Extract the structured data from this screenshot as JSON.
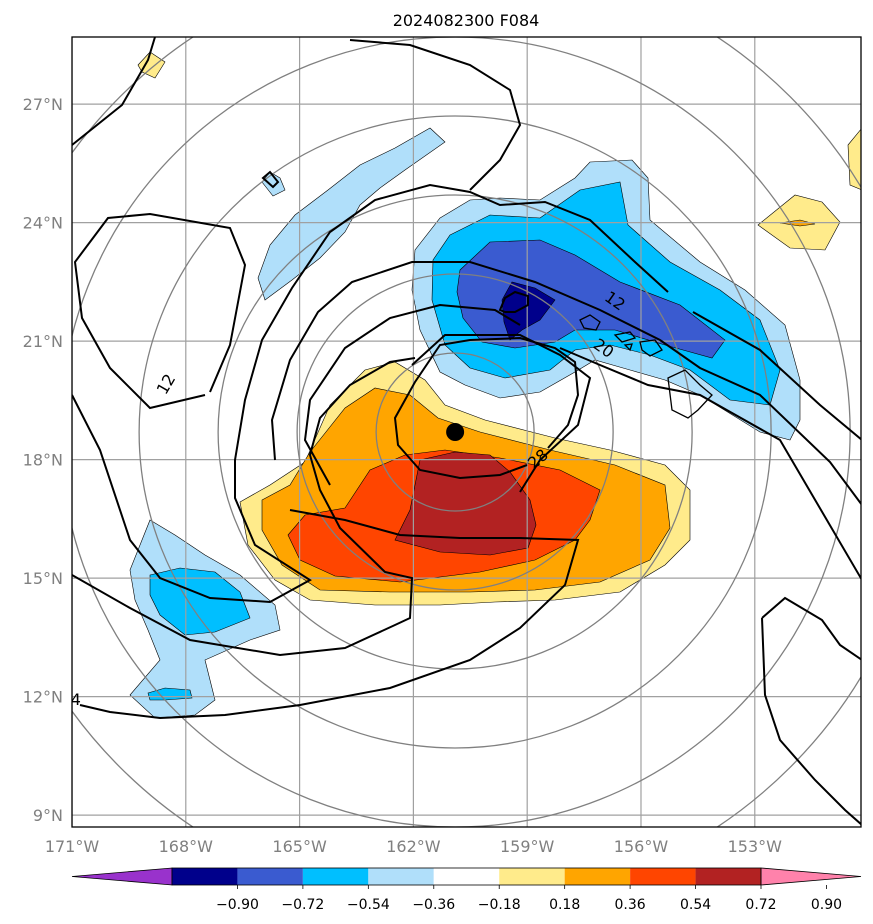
{
  "title": "2024082300 F084",
  "map": {
    "lon_range": [
      -171,
      -150.2
    ],
    "lat_range": [
      8.7,
      28.7
    ],
    "lon_ticks": [
      {
        "value": -171,
        "label": "171°W"
      },
      {
        "value": -168,
        "label": "168°W"
      },
      {
        "value": -165,
        "label": "165°W"
      },
      {
        "value": -162,
        "label": "162°W"
      },
      {
        "value": -159,
        "label": "159°W"
      },
      {
        "value": -156,
        "label": "156°W"
      },
      {
        "value": -153,
        "label": "153°W"
      }
    ],
    "lat_ticks": [
      {
        "value": 9,
        "label": "9°N"
      },
      {
        "value": 12,
        "label": "12°N"
      },
      {
        "value": 15,
        "label": "15°N"
      },
      {
        "value": 18,
        "label": "18°N"
      },
      {
        "value": 21,
        "label": "21°N"
      },
      {
        "value": 24,
        "label": "24°N"
      },
      {
        "value": 27,
        "label": "27°N"
      }
    ],
    "grid": true,
    "storm_center": {
      "lon": -160.9,
      "lat": 18.7
    },
    "range_rings_deg": [
      2,
      4,
      6,
      8,
      10,
      12
    ]
  },
  "contour_labels": [
    {
      "text": "12",
      "lon": -168.5,
      "lat": 19.9,
      "rot": -60
    },
    {
      "text": "12",
      "lon": -156.7,
      "lat": 22.0,
      "rot": 35
    },
    {
      "text": "20",
      "lon": -157.0,
      "lat": 20.8,
      "rot": 35
    },
    {
      "text": "28",
      "lon": -158.7,
      "lat": 18.0,
      "rot": -40
    },
    {
      "text": "4",
      "lon": -170.9,
      "lat": 11.9,
      "rot": 0
    }
  ],
  "colorbar": {
    "colors": [
      "#9932cc",
      "#00008b",
      "#3a5bd0",
      "#00bfff",
      "#b0dffa",
      "#ffffff",
      "#ffeb8b",
      "#ffa500",
      "#ff4500",
      "#b22222",
      "#ff82ab"
    ],
    "labels": [
      "−0.90",
      "−0.72",
      "−0.54",
      "−0.36",
      "−0.18",
      "0.18",
      "0.36",
      "0.54",
      "0.72",
      "0.90"
    ]
  }
}
